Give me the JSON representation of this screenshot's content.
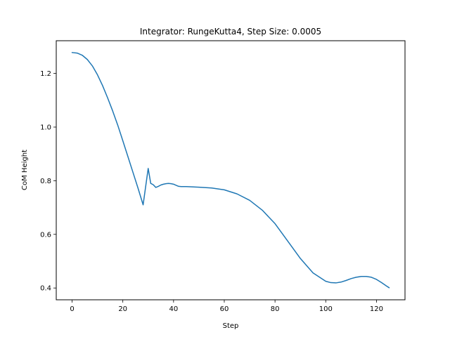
{
  "chart_data": {
    "type": "line",
    "title": "Integrator: RungeKutta4, Step Size: 0.0005",
    "xlabel": "Step",
    "ylabel": "CoM Height",
    "xlim": [
      -6.25,
      131.25
    ],
    "ylim": [
      0.356,
      1.322
    ],
    "xticks": [
      0,
      20,
      40,
      60,
      80,
      100,
      120
    ],
    "yticks": [
      0.4,
      0.6,
      0.8,
      1.0,
      1.2
    ],
    "xtick_labels": [
      "0",
      "20",
      "40",
      "60",
      "80",
      "100",
      "120"
    ],
    "ytick_labels": [
      "0.4",
      "0.6",
      "0.8",
      "1.0",
      "1.2"
    ],
    "grid": false,
    "color": "#1f77b4",
    "series": [
      {
        "x": [
          0,
          2,
          4,
          6,
          8,
          10,
          12,
          14,
          16,
          18,
          20,
          22,
          24,
          26,
          28,
          30,
          31,
          32,
          33,
          34,
          35,
          36,
          37,
          38,
          39,
          40,
          41,
          42,
          43,
          45,
          50,
          55,
          60,
          65,
          70,
          75,
          80,
          85,
          90,
          95,
          100,
          102,
          104,
          106,
          108,
          110,
          112,
          114,
          116,
          118,
          120,
          122,
          124,
          125
        ],
        "y": [
          1.278,
          1.276,
          1.268,
          1.252,
          1.228,
          1.195,
          1.155,
          1.109,
          1.06,
          1.007,
          0.949,
          0.89,
          0.831,
          0.772,
          0.71,
          0.846,
          0.79,
          0.785,
          0.775,
          0.779,
          0.784,
          0.787,
          0.789,
          0.79,
          0.789,
          0.787,
          0.783,
          0.779,
          0.778,
          0.778,
          0.776,
          0.773,
          0.766,
          0.751,
          0.727,
          0.69,
          0.64,
          0.575,
          0.51,
          0.456,
          0.425,
          0.42,
          0.419,
          0.422,
          0.428,
          0.435,
          0.44,
          0.443,
          0.443,
          0.44,
          0.432,
          0.42,
          0.407,
          0.401
        ]
      }
    ]
  }
}
